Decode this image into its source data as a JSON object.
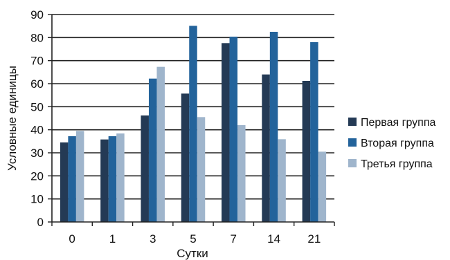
{
  "chart_data": {
    "type": "bar",
    "title": "",
    "xlabel": "Сутки",
    "ylabel": "Условные единицы",
    "categories": [
      "0",
      "1",
      "3",
      "5",
      "7",
      "14",
      "21"
    ],
    "ylim": [
      0,
      90
    ],
    "yticks": [
      0,
      10,
      20,
      30,
      40,
      50,
      60,
      70,
      80,
      90
    ],
    "grid": true,
    "legend_position": "right",
    "series": [
      {
        "name": "Первая группа",
        "color": "#243a55",
        "values": [
          34.5,
          35.8,
          46.2,
          55.7,
          77.6,
          64.0,
          61.2
        ]
      },
      {
        "name": "Вторая группа",
        "color": "#23639b",
        "values": [
          37.2,
          37.2,
          62.2,
          85.1,
          80.4,
          82.5,
          78.0
        ]
      },
      {
        "name": "Третья группа",
        "color": "#9fb5cc",
        "values": [
          39.5,
          38.4,
          67.3,
          45.5,
          42.0,
          35.9,
          30.5
        ]
      }
    ]
  }
}
